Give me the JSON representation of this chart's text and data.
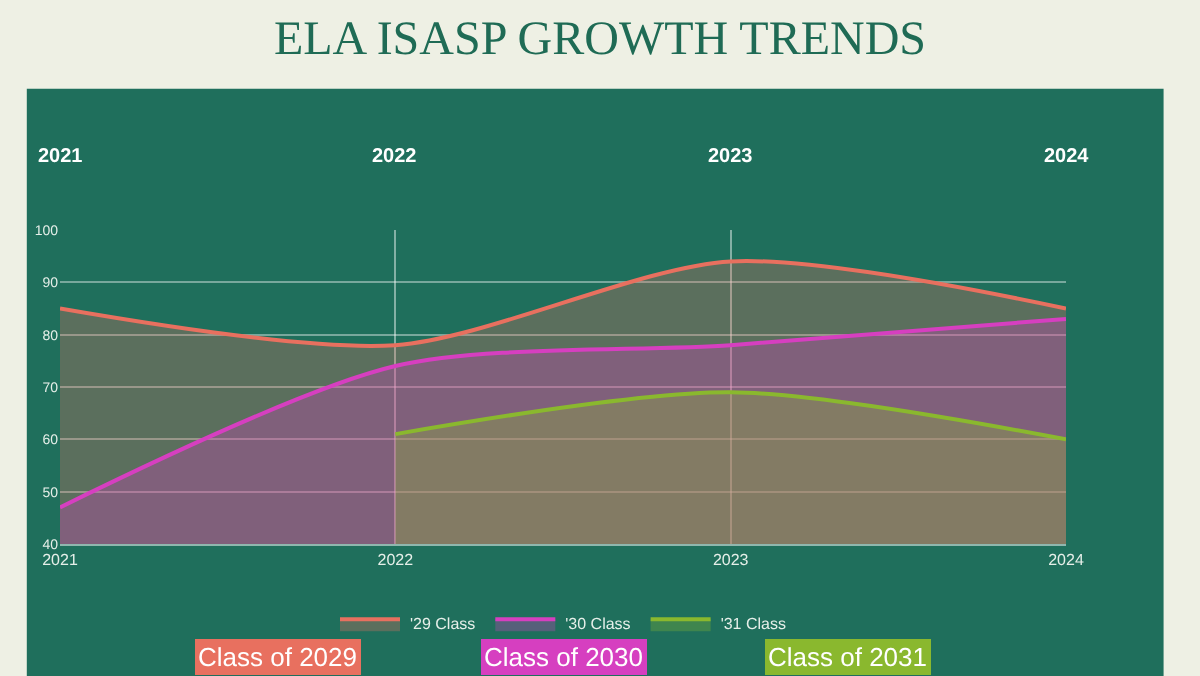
{
  "chart_data": {
    "type": "area",
    "title": "ELA ISASP GROWTH TRENDS",
    "categories": [
      "2021",
      "2022",
      "2023",
      "2024"
    ],
    "series": [
      {
        "name": "'29 Class",
        "color": "#e8705f",
        "values": [
          85,
          78,
          94,
          85
        ]
      },
      {
        "name": "'30 Class",
        "color": "#d63fc0",
        "values": [
          47,
          74,
          78,
          83
        ]
      },
      {
        "name": "'31 Class",
        "color": "#8ab82e",
        "values": [
          null,
          61,
          69,
          60
        ]
      }
    ],
    "annotations": [
      "2021",
      "2022",
      "2023",
      "2024",
      "Class of 2029",
      "Class of 2030",
      "Class of 2031"
    ],
    "ylim": [
      40,
      100
    ],
    "yticks": [
      40,
      50,
      60,
      70,
      80,
      90,
      100
    ],
    "grid": true,
    "legend": "bottom",
    "marker": "none",
    "line_style": "solid"
  }
}
